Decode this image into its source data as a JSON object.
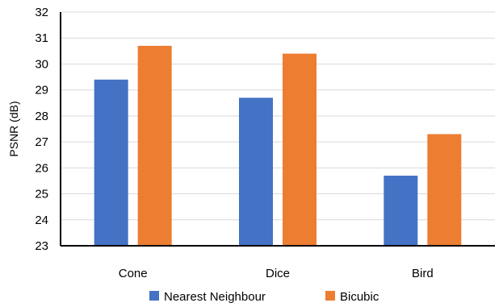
{
  "chart_data": {
    "type": "bar",
    "categories": [
      "Cone",
      "Dice",
      "Bird"
    ],
    "series": [
      {
        "name": "Nearest Neighbour",
        "values": [
          29.4,
          28.7,
          25.7
        ],
        "color": "#4472c4"
      },
      {
        "name": "Bicubic",
        "values": [
          30.7,
          30.4,
          27.3
        ],
        "color": "#ed7d31"
      }
    ],
    "title": "",
    "xlabel": "",
    "ylabel": "PSNR (dB)",
    "ylim": [
      23,
      32
    ],
    "yticks": [
      "23",
      "24",
      "25",
      "26",
      "27",
      "28",
      "29",
      "30",
      "31",
      "32"
    ],
    "grid": true,
    "legend": "bottom"
  }
}
